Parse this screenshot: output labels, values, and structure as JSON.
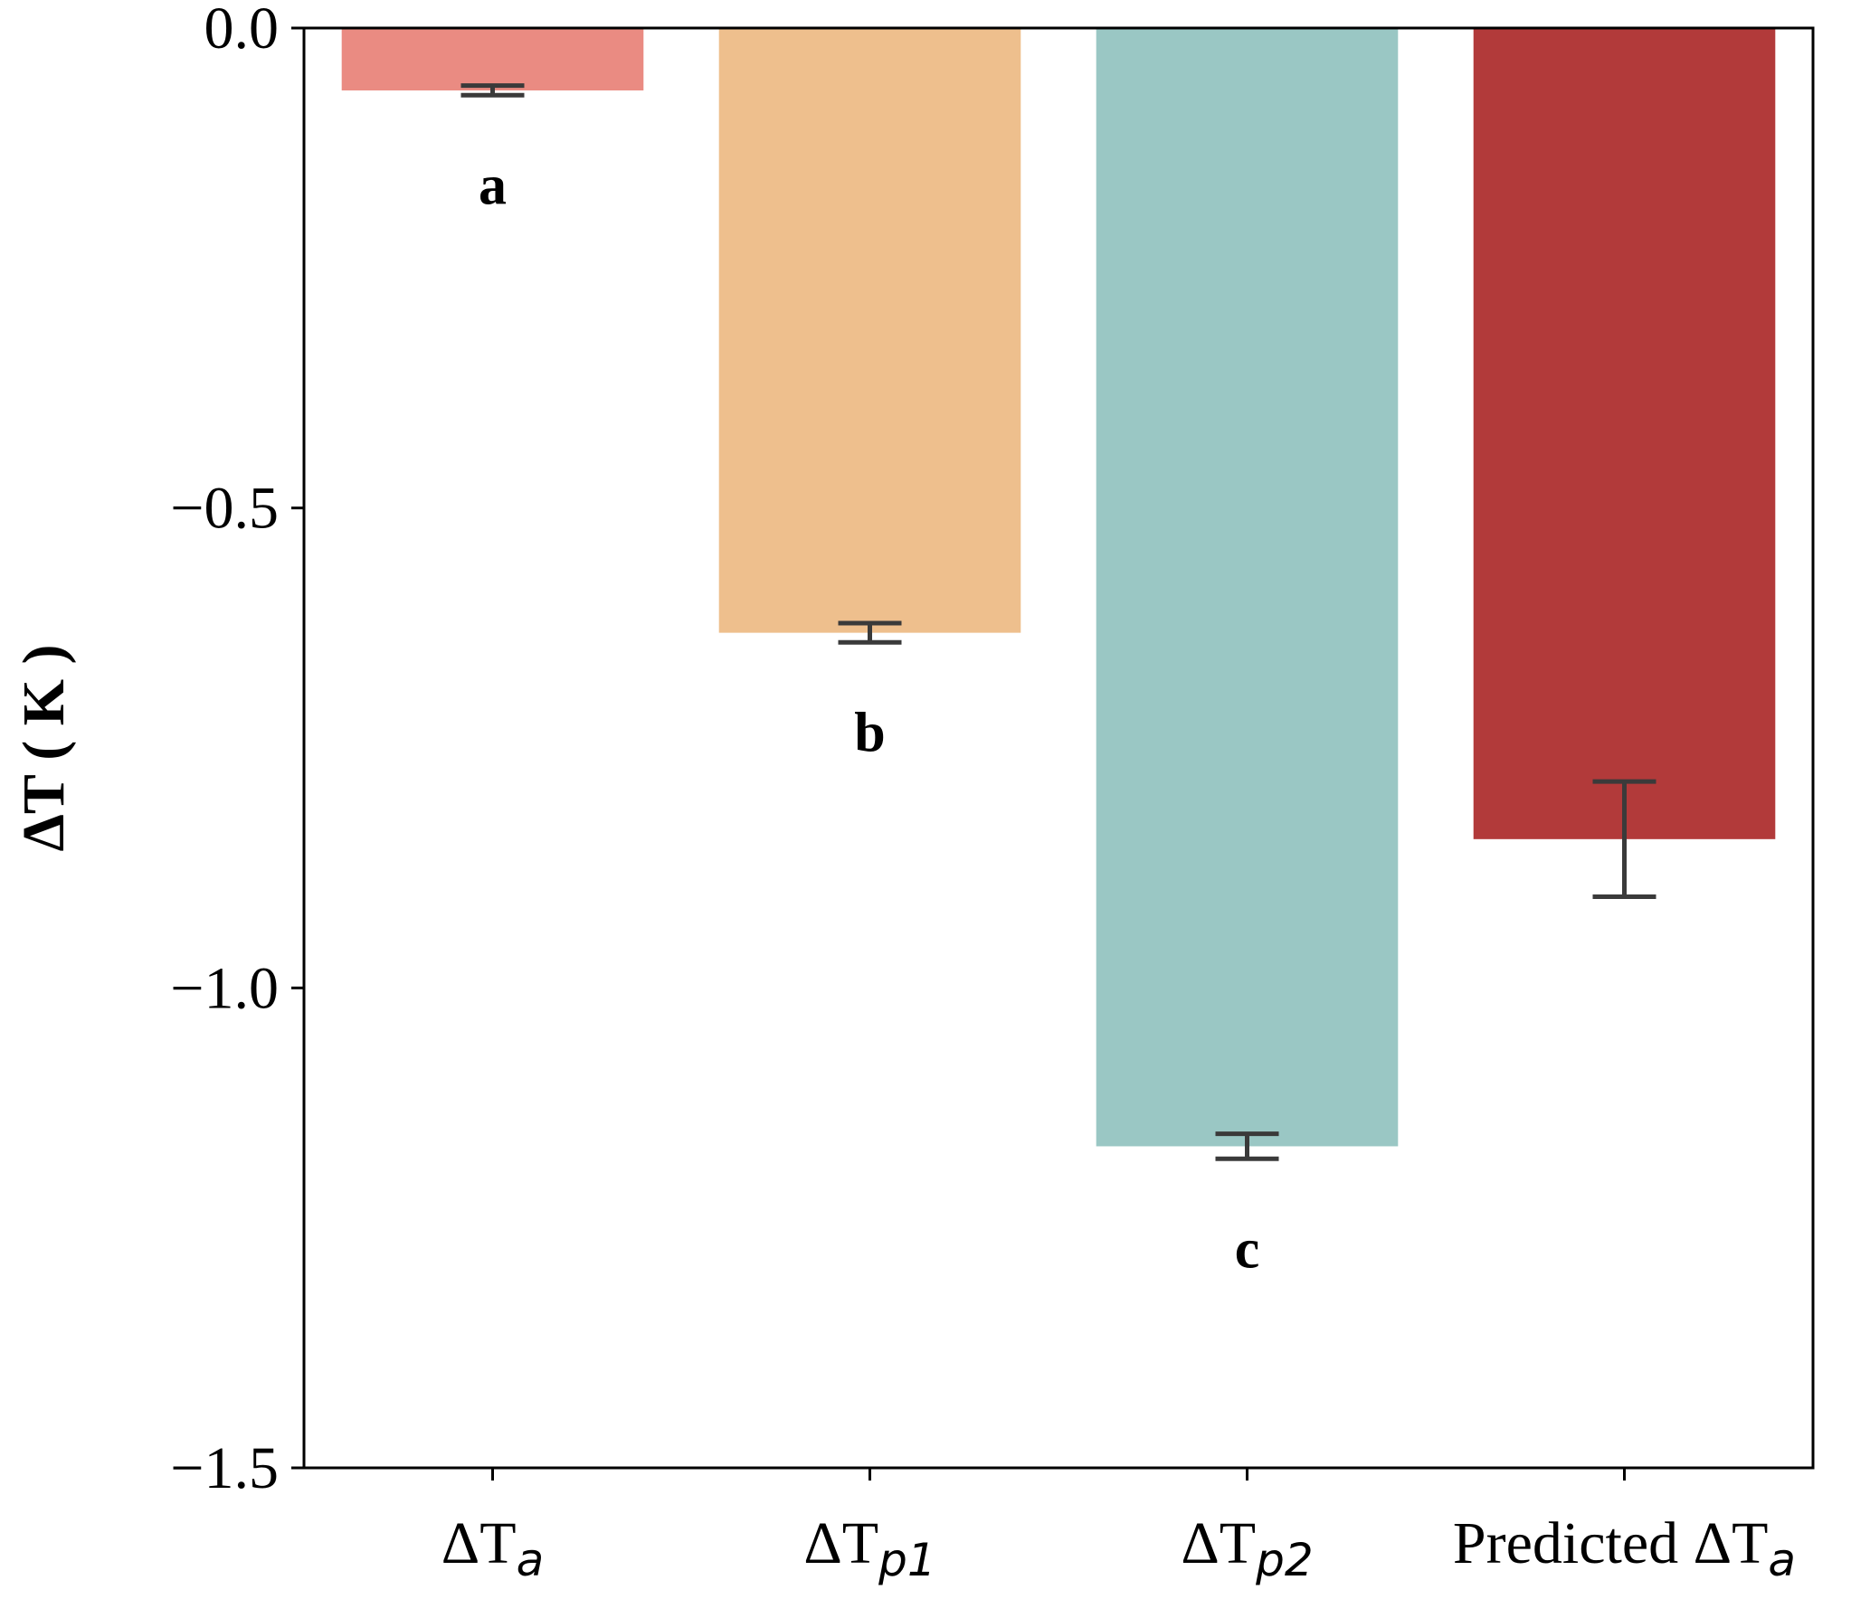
{
  "chart_data": {
    "type": "bar",
    "categories": [
      {
        "base": "ΔT",
        "sub": "a"
      },
      {
        "base": "ΔT",
        "sub": "p1"
      },
      {
        "base": "ΔT",
        "sub": "p2"
      },
      {
        "base": "Predicted ΔT",
        "sub": "a"
      }
    ],
    "values": [
      -0.065,
      -0.63,
      -1.165,
      -0.845
    ],
    "errors": [
      0.005,
      0.01,
      0.013,
      0.06
    ],
    "colors": [
      "#ea8b82",
      "#eebf8d",
      "#9ac7c4",
      "#b23a3a"
    ],
    "significance": [
      "a",
      "b",
      "c",
      ""
    ],
    "ylabel": "ΔT ( K )",
    "ylim": [
      -1.5,
      0.0
    ],
    "yticks": [
      0.0,
      -0.5,
      -1.0,
      -1.5
    ],
    "ytick_labels": [
      "0.0",
      "−0.5",
      "−1.0",
      "−1.5"
    ],
    "grid": false
  }
}
